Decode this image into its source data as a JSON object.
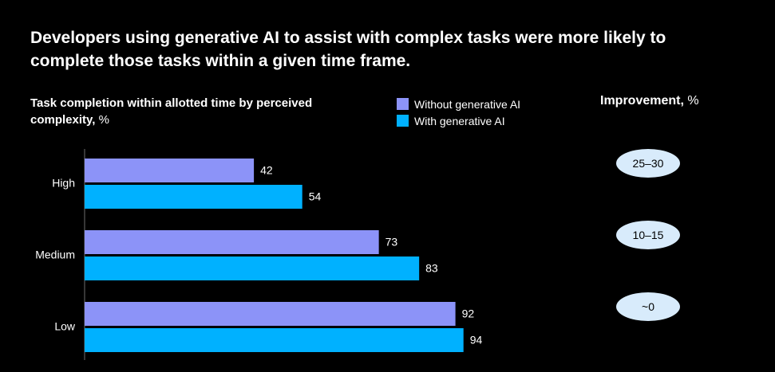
{
  "chart_data": {
    "type": "bar",
    "orientation": "horizontal",
    "title": "Developers using generative AI to assist with complex tasks were more likely to complete those tasks within a given time frame.",
    "subtitle_bold": "Task completion within allotted time by perceived complexity,",
    "subtitle_unit": " %",
    "categories": [
      "High",
      "Medium",
      "Low"
    ],
    "series": [
      {
        "name": "Without generative AI",
        "color": "#8c93f8",
        "values": [
          42,
          73,
          92
        ]
      },
      {
        "name": "With generative AI",
        "color": "#00b1ff",
        "values": [
          54,
          83,
          94
        ]
      }
    ],
    "xlim": [
      0,
      100
    ],
    "grid": false,
    "legend_position": "top-center",
    "improvement": {
      "header_bold": "Improvement,",
      "header_unit": " %",
      "values": [
        "25–30",
        "10–15",
        "~0"
      ]
    }
  }
}
